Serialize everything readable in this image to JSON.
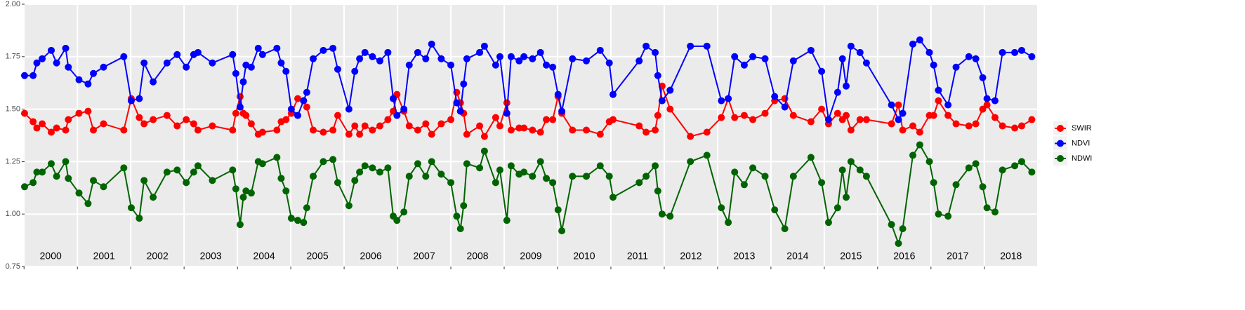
{
  "chart_data": {
    "type": "line",
    "x": [
      2000.01,
      2000.17,
      2000.24,
      2000.34,
      2000.51,
      2000.61,
      2000.78,
      2000.83,
      2001.03,
      2001.2,
      2001.3,
      2001.49,
      2001.87,
      2002.01,
      2002.16,
      2002.25,
      2002.42,
      2002.68,
      2002.87,
      2003.04,
      2003.18,
      2003.26,
      2003.53,
      2003.91,
      2003.97,
      2004.05,
      2004.11,
      2004.16,
      2004.26,
      2004.39,
      2004.47,
      2004.74,
      2004.82,
      2004.91,
      2005.01,
      2005.13,
      2005.24,
      2005.3,
      2005.42,
      2005.61,
      2005.79,
      2005.88,
      2006.09,
      2006.2,
      2006.29,
      2006.39,
      2006.53,
      2006.67,
      2006.82,
      2006.92,
      2006.99,
      2007.12,
      2007.22,
      2007.38,
      2007.53,
      2007.64,
      2007.82,
      2008.0,
      2008.11,
      2008.18,
      2008.24,
      2008.3,
      2008.54,
      2008.63,
      2008.84,
      2008.92,
      2009.05,
      2009.13,
      2009.28,
      2009.37,
      2009.53,
      2009.68,
      2009.79,
      2009.91,
      2010.01,
      2010.08,
      2010.28,
      2010.54,
      2010.8,
      2010.97,
      2011.04,
      2011.53,
      2011.66,
      2011.83,
      2011.88,
      2011.96,
      2012.11,
      2012.49,
      2012.8,
      2013.07,
      2013.2,
      2013.32,
      2013.5,
      2013.66,
      2013.89,
      2014.07,
      2014.26,
      2014.42,
      2014.75,
      2014.95,
      2015.08,
      2015.25,
      2015.34,
      2015.41,
      2015.5,
      2015.67,
      2015.79,
      2016.26,
      2016.39,
      2016.47,
      2016.66,
      2016.79,
      2016.97,
      2017.05,
      2017.14,
      2017.32,
      2017.47,
      2017.71,
      2017.84,
      2017.97,
      2018.05,
      2018.2,
      2018.34,
      2018.57,
      2018.7,
      2018.89
    ],
    "series": [
      {
        "name": "SWIR",
        "color": "#ff0000",
        "values": [
          1.48,
          1.44,
          1.41,
          1.43,
          1.39,
          1.41,
          1.4,
          1.45,
          1.48,
          1.49,
          1.4,
          1.43,
          1.4,
          1.55,
          1.46,
          1.43,
          1.45,
          1.47,
          1.42,
          1.45,
          1.43,
          1.4,
          1.42,
          1.4,
          1.48,
          1.56,
          1.48,
          1.47,
          1.43,
          1.38,
          1.39,
          1.4,
          1.44,
          1.45,
          1.48,
          1.55,
          1.54,
          1.51,
          1.4,
          1.39,
          1.4,
          1.47,
          1.38,
          1.42,
          1.38,
          1.42,
          1.4,
          1.42,
          1.45,
          1.49,
          1.57,
          1.49,
          1.42,
          1.4,
          1.43,
          1.38,
          1.43,
          1.45,
          1.58,
          1.53,
          1.48,
          1.38,
          1.42,
          1.37,
          1.46,
          1.42,
          1.53,
          1.4,
          1.41,
          1.41,
          1.4,
          1.39,
          1.45,
          1.45,
          1.56,
          1.48,
          1.4,
          1.4,
          1.38,
          1.44,
          1.45,
          1.42,
          1.39,
          1.4,
          1.47,
          1.61,
          1.5,
          1.37,
          1.39,
          1.46,
          1.55,
          1.46,
          1.47,
          1.45,
          1.48,
          1.54,
          1.55,
          1.47,
          1.44,
          1.5,
          1.43,
          1.48,
          1.45,
          1.47,
          1.4,
          1.45,
          1.45,
          1.43,
          1.52,
          1.4,
          1.42,
          1.39,
          1.47,
          1.47,
          1.54,
          1.47,
          1.43,
          1.42,
          1.43,
          1.5,
          1.52,
          1.46,
          1.42,
          1.41,
          1.42,
          1.45
        ]
      },
      {
        "name": "NDVI",
        "color": "#0000ff",
        "values": [
          1.66,
          1.66,
          1.72,
          1.74,
          1.78,
          1.72,
          1.79,
          1.7,
          1.64,
          1.62,
          1.67,
          1.7,
          1.75,
          1.54,
          1.55,
          1.72,
          1.63,
          1.72,
          1.76,
          1.7,
          1.76,
          1.77,
          1.72,
          1.76,
          1.67,
          1.51,
          1.63,
          1.71,
          1.7,
          1.79,
          1.76,
          1.79,
          1.72,
          1.68,
          1.5,
          1.47,
          1.54,
          1.58,
          1.74,
          1.78,
          1.79,
          1.69,
          1.5,
          1.68,
          1.74,
          1.77,
          1.75,
          1.73,
          1.77,
          1.55,
          1.47,
          1.5,
          1.71,
          1.77,
          1.74,
          1.81,
          1.74,
          1.71,
          1.53,
          1.49,
          1.62,
          1.74,
          1.77,
          1.8,
          1.71,
          1.75,
          1.48,
          1.75,
          1.73,
          1.75,
          1.74,
          1.77,
          1.71,
          1.7,
          1.57,
          1.49,
          1.74,
          1.73,
          1.78,
          1.72,
          1.57,
          1.73,
          1.8,
          1.77,
          1.66,
          1.54,
          1.59,
          1.8,
          1.8,
          1.54,
          1.55,
          1.75,
          1.71,
          1.75,
          1.74,
          1.56,
          1.51,
          1.73,
          1.78,
          1.68,
          1.45,
          1.58,
          1.74,
          1.61,
          1.8,
          1.77,
          1.72,
          1.52,
          1.45,
          1.48,
          1.81,
          1.83,
          1.77,
          1.71,
          1.59,
          1.52,
          1.7,
          1.75,
          1.74,
          1.65,
          1.55,
          1.54,
          1.77,
          1.77,
          1.78,
          1.75
        ]
      },
      {
        "name": "NDWI",
        "color": "#006400",
        "values": [
          1.13,
          1.15,
          1.2,
          1.2,
          1.24,
          1.18,
          1.25,
          1.17,
          1.1,
          1.05,
          1.16,
          1.13,
          1.22,
          1.03,
          0.98,
          1.16,
          1.08,
          1.2,
          1.21,
          1.15,
          1.2,
          1.23,
          1.16,
          1.21,
          1.12,
          0.95,
          1.08,
          1.11,
          1.1,
          1.25,
          1.24,
          1.27,
          1.17,
          1.11,
          0.98,
          0.97,
          0.96,
          1.03,
          1.18,
          1.25,
          1.26,
          1.15,
          1.04,
          1.16,
          1.2,
          1.23,
          1.22,
          1.2,
          1.22,
          0.99,
          0.97,
          1.01,
          1.18,
          1.24,
          1.18,
          1.25,
          1.19,
          1.15,
          0.99,
          0.93,
          1.04,
          1.24,
          1.22,
          1.3,
          1.15,
          1.21,
          0.97,
          1.23,
          1.19,
          1.2,
          1.18,
          1.25,
          1.17,
          1.15,
          1.02,
          0.92,
          1.18,
          1.18,
          1.23,
          1.18,
          1.08,
          1.15,
          1.18,
          1.23,
          1.11,
          1.0,
          0.99,
          1.25,
          1.28,
          1.03,
          0.96,
          1.2,
          1.14,
          1.22,
          1.18,
          1.02,
          0.93,
          1.18,
          1.27,
          1.15,
          0.96,
          1.03,
          1.21,
          1.08,
          1.25,
          1.21,
          1.18,
          0.95,
          0.86,
          0.93,
          1.28,
          1.33,
          1.25,
          1.15,
          1.0,
          0.99,
          1.14,
          1.22,
          1.24,
          1.13,
          1.03,
          1.01,
          1.21,
          1.23,
          1.25,
          1.2
        ]
      }
    ],
    "xlim": [
      2000.01,
      2018.99
    ],
    "xticks": [
      {
        "value": 2000,
        "label": "2000"
      },
      {
        "value": 2001,
        "label": "2001"
      },
      {
        "value": 2002,
        "label": "2002"
      },
      {
        "value": 2003,
        "label": "2003"
      },
      {
        "value": 2004,
        "label": "2004"
      },
      {
        "value": 2005,
        "label": "2005"
      },
      {
        "value": 2006,
        "label": "2006"
      },
      {
        "value": 2007,
        "label": "2007"
      },
      {
        "value": 2008,
        "label": "2008"
      },
      {
        "value": 2009,
        "label": "2009"
      },
      {
        "value": 2010,
        "label": "2010"
      },
      {
        "value": 2011,
        "label": "2011"
      },
      {
        "value": 2012,
        "label": "2012"
      },
      {
        "value": 2013,
        "label": "2013"
      },
      {
        "value": 2014,
        "label": "2014"
      },
      {
        "value": 2015,
        "label": "2015"
      },
      {
        "value": 2016,
        "label": "2016"
      },
      {
        "value": 2017,
        "label": "2017"
      },
      {
        "value": 2018,
        "label": "2018"
      }
    ],
    "ylim": [
      0.75,
      2.0
    ],
    "yticks": [
      {
        "value": 0.75,
        "label": "0.75"
      },
      {
        "value": 1.0,
        "label": "1.00"
      },
      {
        "value": 1.25,
        "label": "1.25"
      },
      {
        "value": 1.5,
        "label": "1.50"
      },
      {
        "value": 1.75,
        "label": "1.75"
      },
      {
        "value": 2.0,
        "label": "2.00"
      }
    ],
    "grid": true,
    "legend": "right"
  }
}
